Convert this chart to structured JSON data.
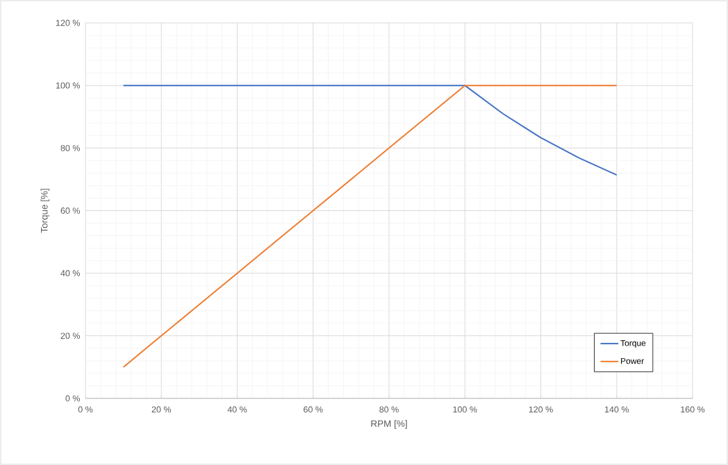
{
  "chart_data": {
    "type": "line",
    "xlabel": "RPM  [%]",
    "ylabel": "Torque [%]",
    "xlim": [
      0,
      160
    ],
    "ylim": [
      0,
      120
    ],
    "xticks": [
      {
        "value": 0,
        "label": "0 %"
      },
      {
        "value": 20,
        "label": "20 %"
      },
      {
        "value": 40,
        "label": "40 %"
      },
      {
        "value": 60,
        "label": "60 %"
      },
      {
        "value": 80,
        "label": "80 %"
      },
      {
        "value": 100,
        "label": "100 %"
      },
      {
        "value": 120,
        "label": "120 %"
      },
      {
        "value": 140,
        "label": "140 %"
      },
      {
        "value": 160,
        "label": "160 %"
      }
    ],
    "yticks": [
      {
        "value": 0,
        "label": "0 %"
      },
      {
        "value": 20,
        "label": "20 %"
      },
      {
        "value": 40,
        "label": "40 %"
      },
      {
        "value": 60,
        "label": "60 %"
      },
      {
        "value": 80,
        "label": "80 %"
      },
      {
        "value": 100,
        "label": "100 %"
      },
      {
        "value": 120,
        "label": "120 %"
      }
    ],
    "x": [
      10,
      20,
      30,
      40,
      50,
      60,
      70,
      80,
      90,
      100,
      110,
      120,
      130,
      140
    ],
    "series": [
      {
        "name": "Torque",
        "color": "#4472c4",
        "values": [
          100,
          100,
          100,
          100,
          100,
          100,
          100,
          100,
          100,
          100,
          91,
          83.3,
          76.9,
          71.4
        ]
      },
      {
        "name": "Power",
        "color": "#ed7d31",
        "values": [
          10,
          20,
          30,
          40,
          50,
          60,
          70,
          80,
          90,
          100,
          100,
          100,
          100,
          100
        ]
      }
    ],
    "grid": true,
    "legend": "bottom right",
    "line_style": "solid"
  }
}
